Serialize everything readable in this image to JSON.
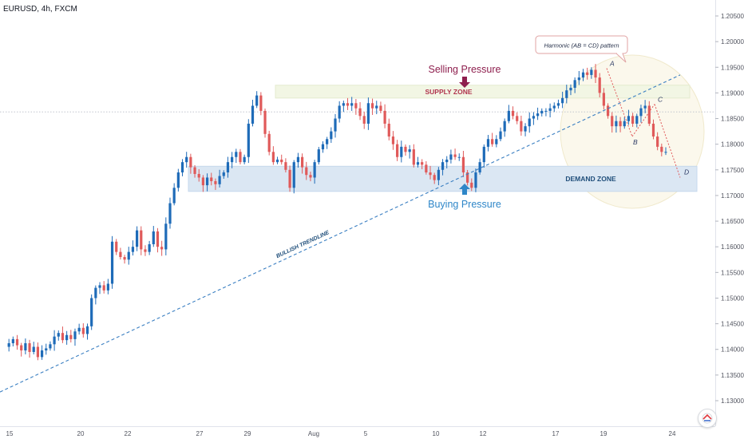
{
  "header": {
    "ticker": "EURUSD, 4h, FXCM"
  },
  "colors": {
    "up": "#1e6bb8",
    "down": "#e05a5a",
    "trendline": "#3a7fc2",
    "supply_zone": "#f2f6e4",
    "demand_zone": "#dbe7f3",
    "selling_arrow": "#8e1f4e",
    "buying_arrow": "#2e86c8"
  },
  "chart_data": {
    "type": "candlestick",
    "symbol": "EURUSD",
    "timeframe": "4h",
    "source": "FXCM",
    "x_ticks": [
      "15",
      "20",
      "22",
      "27",
      "29",
      "Aug",
      "5",
      "10",
      "12",
      "17",
      "19",
      "24"
    ],
    "y_ticks": [
      "1.20500",
      "1.20000",
      "1.19500",
      "1.19000",
      "1.18500",
      "1.18000",
      "1.17500",
      "1.17000",
      "1.16500",
      "1.16000",
      "1.15500",
      "1.15000",
      "1.14500",
      "1.14000",
      "1.13500",
      "1.13000"
    ],
    "ylim": [
      1.126,
      1.208
    ],
    "price_line": 1.1863,
    "close_path": [
      1.1405,
      1.1412,
      1.142,
      1.1408,
      1.1398,
      1.1412,
      1.1395,
      1.1405,
      1.1385,
      1.1398,
      1.1402,
      1.141,
      1.1425,
      1.1432,
      1.1418,
      1.1428,
      1.142,
      1.1435,
      1.1442,
      1.143,
      1.1445,
      1.15,
      1.152,
      1.1525,
      1.1515,
      1.1528,
      1.161,
      1.159,
      1.158,
      1.1575,
      1.159,
      1.16,
      1.1632,
      1.1595,
      1.159,
      1.1605,
      1.163,
      1.16,
      1.1595,
      1.1645,
      1.1685,
      1.1715,
      1.1745,
      1.1765,
      1.1775,
      1.1755,
      1.1742,
      1.1735,
      1.172,
      1.1735,
      1.1728,
      1.1722,
      1.1738,
      1.1745,
      1.1765,
      1.1775,
      1.1785,
      1.1765,
      1.1775,
      1.184,
      1.1875,
      1.1895,
      1.1865,
      1.182,
      1.1785,
      1.1765,
      1.177,
      1.1765,
      1.175,
      1.1715,
      1.1765,
      1.1775,
      1.1755,
      1.174,
      1.1735,
      1.1765,
      1.179,
      1.18,
      1.181,
      1.1825,
      1.185,
      1.1875,
      1.188,
      1.1875,
      1.188,
      1.187,
      1.1855,
      1.184,
      1.188,
      1.187,
      1.1875,
      1.1865,
      1.184,
      1.1815,
      1.18,
      1.1775,
      1.1795,
      1.1785,
      1.179,
      1.176,
      1.1765,
      1.176,
      1.1745,
      1.174,
      1.173,
      1.175,
      1.1765,
      1.177,
      1.178,
      1.1775,
      1.1775,
      1.1745,
      1.1725,
      1.1715,
      1.1745,
      1.1765,
      1.1795,
      1.181,
      1.18,
      1.181,
      1.1825,
      1.1845,
      1.1865,
      1.1855,
      1.1845,
      1.1825,
      1.1835,
      1.185,
      1.1855,
      1.186,
      1.1865,
      1.1865,
      1.187,
      1.1875,
      1.188,
      1.189,
      1.1905,
      1.191,
      1.1925,
      1.193,
      1.194,
      1.1935,
      1.1945,
      1.193,
      1.19,
      1.1875,
      1.1855,
      1.1835,
      1.1845,
      1.1835,
      1.1845,
      1.1855,
      1.184,
      1.1855,
      1.187,
      1.1875,
      1.184,
      1.1815,
      1.1795,
      1.1785,
      1.1785
    ],
    "trendline": {
      "label": "BULLISH TRENDLINE",
      "start_price": 1.1317,
      "end_price": 1.1935
    },
    "zones": [
      {
        "label": "SUPPLY ZONE",
        "top": 1.1915,
        "bottom": 1.189
      },
      {
        "label": "DEMAND ZONE",
        "top": 1.1757,
        "bottom": 1.1708
      }
    ],
    "pressure_labels": [
      {
        "label": "Selling Pressure",
        "price": 1.1915
      },
      {
        "label": "Buying Pressure",
        "price": 1.1728
      }
    ],
    "harmonic": {
      "label": "Harmonic (AB = CD) pattern",
      "points": [
        {
          "label": "A",
          "price": 1.1948
        },
        {
          "label": "B",
          "price": 1.1815
        },
        {
          "label": "C",
          "price": 1.1878
        },
        {
          "label": "D",
          "price": 1.1735
        }
      ]
    }
  }
}
